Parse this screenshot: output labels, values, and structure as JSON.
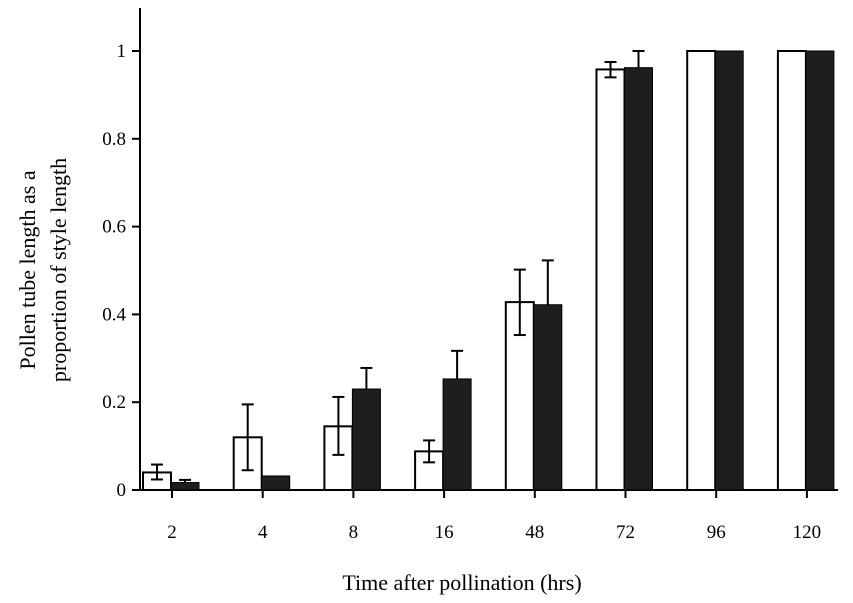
{
  "chart_data": {
    "type": "bar",
    "title": "",
    "xlabel": "Time after pollination (hrs)",
    "ylabel_lines": [
      "Pollen tube length as a",
      "proportion of style length"
    ],
    "categories": [
      "2",
      "4",
      "8",
      "16",
      "48",
      "72",
      "96",
      "120"
    ],
    "series": [
      {
        "fill": "#ffffff",
        "values": [
          0.04,
          0.12,
          0.145,
          0.088,
          0.428,
          0.958,
          1.0,
          1.0
        ],
        "err_low": [
          0.024,
          0.045,
          0.08,
          0.063,
          0.353,
          0.94,
          1.0,
          1.0
        ],
        "err_high": [
          0.058,
          0.195,
          0.212,
          0.113,
          0.502,
          0.975,
          1.0,
          1.0
        ]
      },
      {
        "fill": "#1e1e1e",
        "values": [
          0.017,
          0.032,
          0.23,
          0.253,
          0.422,
          0.962,
          1.0,
          1.0
        ],
        "err_high": [
          0.023,
          0.032,
          0.278,
          0.317,
          0.523,
          1.0,
          1.0,
          1.0
        ]
      }
    ],
    "ylim": [
      0,
      1.1
    ],
    "yticks": [
      0,
      0.2,
      0.4,
      0.6,
      0.8,
      1
    ],
    "ytick_labels": [
      "0",
      "0.2",
      "0.4",
      "0.6",
      "0.8",
      "1"
    ],
    "grid": false,
    "legend": "none"
  }
}
